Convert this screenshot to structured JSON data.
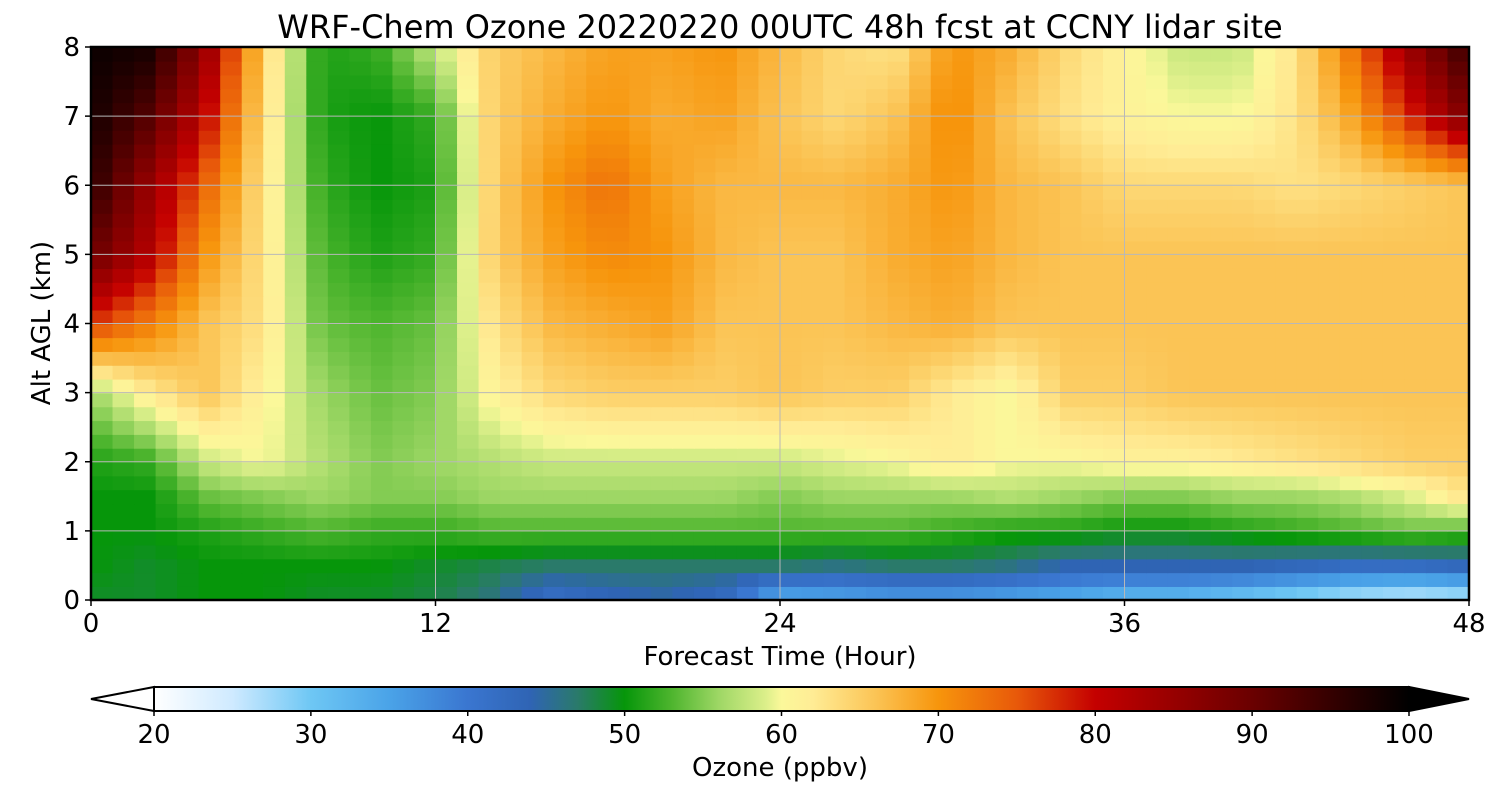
{
  "chart_data": {
    "type": "heatmap",
    "title": "WRF-Chem Ozone  20220220 00UTC 48h fcst at CCNY lidar site",
    "xlabel": "Forecast Time (Hour)",
    "ylabel": "Alt AGL (km)",
    "x_ticks": [
      0,
      12,
      24,
      36,
      48
    ],
    "y_ticks": [
      0,
      1,
      2,
      3,
      4,
      5,
      6,
      7,
      8
    ],
    "xlim": [
      0,
      48
    ],
    "ylim": [
      0,
      8
    ],
    "grid": true,
    "x": [
      0,
      2,
      4,
      6,
      8,
      10,
      12,
      14,
      16,
      18,
      20,
      22,
      24,
      26,
      28,
      30,
      32,
      34,
      36,
      38,
      40,
      42,
      44,
      46,
      48
    ],
    "y": [
      0,
      0.5,
      1,
      1.5,
      2,
      3,
      4,
      5,
      6,
      7,
      8
    ],
    "z": [
      [
        49,
        49,
        50,
        50,
        49,
        49,
        48,
        46,
        41,
        43,
        44,
        42,
        33,
        34,
        35,
        35,
        34,
        33,
        31,
        31,
        29,
        27,
        25,
        24,
        25
      ],
      [
        50,
        49,
        50,
        50,
        50,
        50,
        49,
        48,
        47,
        47,
        47,
        47,
        47,
        46,
        47,
        47,
        46,
        44,
        44,
        44,
        44,
        43,
        42,
        42,
        43
      ],
      [
        50,
        50,
        51,
        52,
        53,
        52,
        52,
        53,
        53,
        53,
        53,
        53,
        53,
        53,
        53,
        52,
        51,
        51,
        50,
        50,
        51,
        52,
        53,
        54,
        53
      ],
      [
        50,
        50,
        54,
        55,
        56,
        55,
        55,
        56,
        56,
        56,
        56,
        56,
        55,
        56,
        56,
        56,
        57,
        56,
        55,
        55,
        56,
        56,
        57,
        59,
        63
      ],
      [
        51,
        52,
        58,
        60,
        57,
        55,
        56,
        57,
        58,
        58,
        58,
        58,
        58,
        59,
        60,
        62,
        60,
        60,
        61,
        61,
        62,
        63,
        64,
        65,
        65
      ],
      [
        56,
        62,
        66,
        61,
        56,
        54,
        55,
        61,
        64,
        65,
        65,
        65,
        66,
        65,
        65,
        62,
        60,
        65,
        65,
        66,
        66,
        66,
        66,
        66,
        66
      ],
      [
        77,
        72,
        66,
        63,
        54,
        53,
        54,
        63,
        67,
        68,
        69,
        66,
        66,
        66,
        67,
        68,
        66,
        66,
        66,
        66,
        66,
        66,
        66,
        66,
        66
      ],
      [
        90,
        82,
        70,
        63,
        53,
        51,
        52,
        65,
        69,
        71,
        70,
        67,
        66,
        66,
        68,
        69,
        67,
        66,
        66,
        66,
        66,
        66,
        66,
        66,
        66
      ],
      [
        96,
        85,
        74,
        63,
        52,
        50,
        51,
        65,
        70,
        73,
        69,
        67,
        67,
        67,
        68,
        70,
        67,
        66,
        64,
        64,
        64,
        63,
        64,
        65,
        66
      ],
      [
        98,
        92,
        80,
        64,
        51,
        50,
        52,
        65,
        68,
        70,
        68,
        69,
        66,
        64,
        66,
        71,
        66,
        63,
        61,
        60,
        60,
        63,
        69,
        78,
        88
      ],
      [
        99,
        98,
        85,
        65,
        51,
        52,
        58,
        65,
        67,
        69,
        69,
        70,
        67,
        64,
        63,
        70,
        68,
        64,
        61,
        58,
        58,
        63,
        73,
        85,
        95
      ]
    ],
    "colorbar": {
      "label": "Ozone  (ppbv)",
      "ticks": [
        20,
        30,
        40,
        50,
        60,
        70,
        80,
        90,
        100
      ],
      "min": 20,
      "max": 100,
      "extend": "both",
      "stops": [
        [
          20,
          "#ffffff"
        ],
        [
          25,
          "#cfeaff"
        ],
        [
          30,
          "#6ec7f4"
        ],
        [
          35,
          "#4aa3e8"
        ],
        [
          40,
          "#3a76d0"
        ],
        [
          44,
          "#2f64b4"
        ],
        [
          47,
          "#2a7a6a"
        ],
        [
          50,
          "#06960a"
        ],
        [
          53,
          "#4eb52e"
        ],
        [
          56,
          "#9ed765"
        ],
        [
          59,
          "#dcef8a"
        ],
        [
          60,
          "#fbf89a"
        ],
        [
          62,
          "#ffec95"
        ],
        [
          66,
          "#fbc455"
        ],
        [
          70,
          "#f7950c"
        ],
        [
          75,
          "#e8590a"
        ],
        [
          80,
          "#c40000"
        ],
        [
          90,
          "#6a0000"
        ],
        [
          100,
          "#000000"
        ]
      ]
    }
  }
}
